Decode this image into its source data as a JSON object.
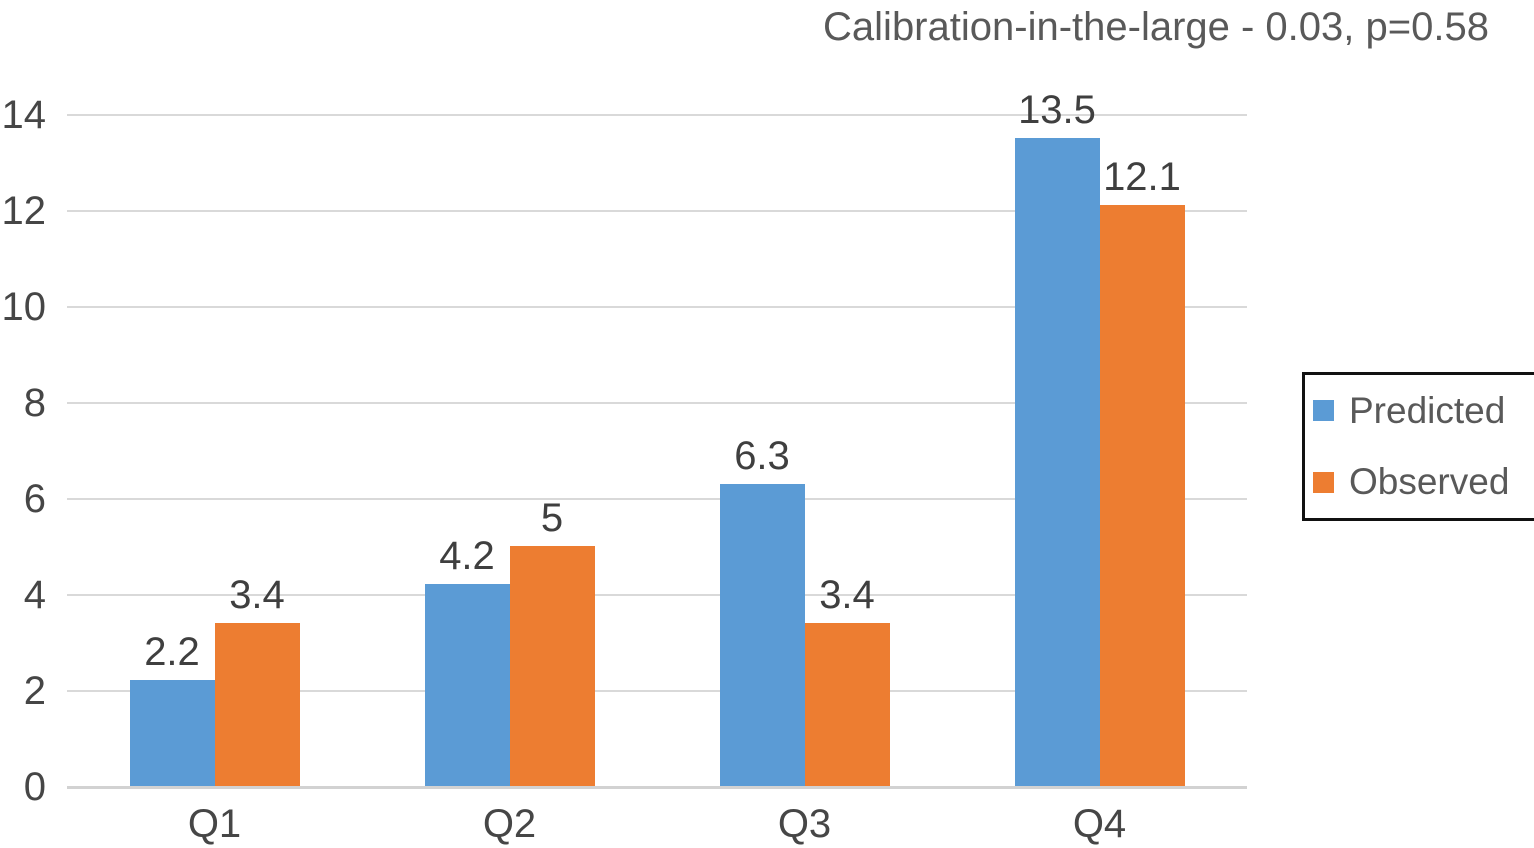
{
  "title": "Calibration-in-the-large - 0.03, p=0.58",
  "chart_data": {
    "type": "bar",
    "title": "Calibration-in-the-large - 0.03, p=0.58",
    "categories": [
      "Q1",
      "Q2",
      "Q3",
      "Q4"
    ],
    "series": [
      {
        "name": "Predicted",
        "color": "#5b9bd5",
        "values": [
          2.2,
          4.2,
          6.3,
          13.5
        ]
      },
      {
        "name": "Observed",
        "color": "#ed7d31",
        "values": [
          3.4,
          5,
          3.4,
          12.1
        ]
      }
    ],
    "xlabel": "",
    "ylabel": "",
    "ylim": [
      0,
      14
    ],
    "ytick_step": 2,
    "grid": true,
    "gridline_color": "#d9d9d9",
    "data_labels": true,
    "legend_position": "right"
  },
  "legend": {
    "items": [
      {
        "label": "Predicted",
        "color": "#5b9bd5"
      },
      {
        "label": "Observed",
        "color": "#ed7d31"
      }
    ]
  },
  "colors": {
    "predicted": "#5b9bd5",
    "observed": "#ed7d31",
    "title_text": "#595959",
    "axis_text": "#464646",
    "gridline": "#d9d9d9"
  }
}
